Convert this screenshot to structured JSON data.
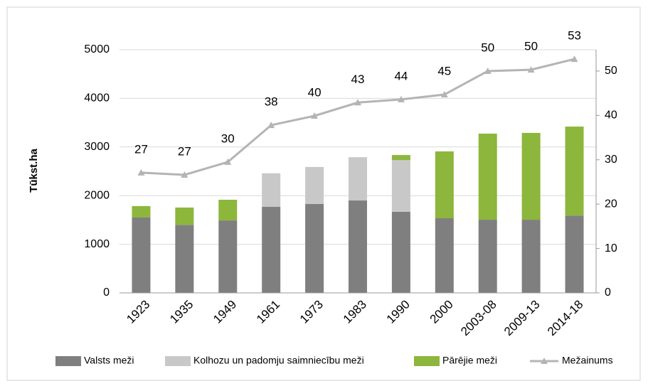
{
  "chart_data": {
    "type": "bar",
    "y_label": "Tūkst.ha",
    "categories": [
      "1923",
      "1935",
      "1949",
      "1961",
      "1973",
      "1983",
      "1990",
      "2000",
      "2003-08",
      "2009-13",
      "2014-18"
    ],
    "series": [
      {
        "name": "Valsts meži",
        "color": "#7f7f7f",
        "values": [
          1550,
          1400,
          1490,
          1770,
          1830,
          1900,
          1670,
          1535,
          1505,
          1505,
          1590
        ]
      },
      {
        "name": "Kolhozu un padomju saimniecību meži",
        "color": "#c8c8c8",
        "values": [
          0,
          0,
          0,
          690,
          760,
          890,
          1060,
          0,
          0,
          0,
          0
        ]
      },
      {
        "name": "Pārējie meži",
        "color": "#8db63c",
        "values": [
          235,
          355,
          425,
          0,
          0,
          0,
          105,
          1375,
          1770,
          1785,
          1830
        ]
      },
      {
        "name": "Mežainums",
        "color": "#b4b4b4",
        "axis": "y2",
        "type": "line",
        "values": [
          27.1,
          26.6,
          29.5,
          37.8,
          39.9,
          42.9,
          43.6,
          44.7,
          50.0,
          50.3,
          52.7
        ],
        "value_labels": [
          "27",
          "27",
          "30",
          "38",
          "40",
          "43",
          "44",
          "45",
          "50",
          "50",
          "53"
        ]
      }
    ],
    "ylim": [
      0,
      5000
    ],
    "yticks": [
      0,
      1000,
      2000,
      3000,
      4000,
      5000
    ],
    "y2lim": [
      0,
      54.8
    ],
    "y2ticks": [
      0,
      10,
      20,
      30,
      40,
      50
    ],
    "grid": true
  }
}
